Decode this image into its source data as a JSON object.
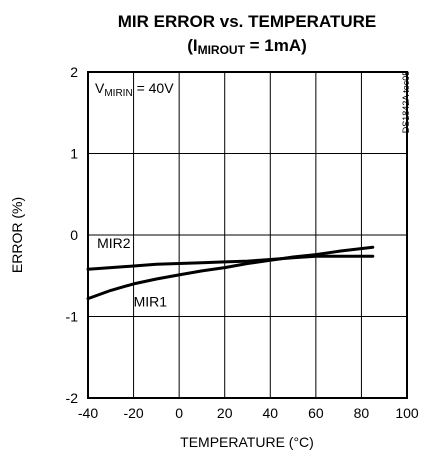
{
  "chart_data": {
    "type": "line",
    "title": "MIR ERROR vs. TEMPERATURE",
    "subtitle": {
      "open": "(I",
      "sub": "MIROUT",
      "rest": " = 1mA)"
    },
    "xlabel": "TEMPERATURE (°C)",
    "ylabel": "ERROR (%)",
    "xlim": [
      -40,
      100
    ],
    "ylim": [
      -2,
      2
    ],
    "xticks": [
      -40,
      -20,
      0,
      20,
      40,
      60,
      80,
      100
    ],
    "yticks": [
      -2,
      -1,
      0,
      1,
      2
    ],
    "grid": true,
    "annotation": {
      "main": "V",
      "sub": "MIRIN",
      "rest": " = 40V"
    },
    "figure_code": "DS1842A toc05",
    "series": [
      {
        "name": "MIR1",
        "x": [
          -40,
          -30,
          -20,
          -10,
          0,
          10,
          20,
          30,
          40,
          50,
          60,
          70,
          85
        ],
        "y": [
          -0.78,
          -0.68,
          -0.6,
          -0.54,
          -0.49,
          -0.44,
          -0.4,
          -0.35,
          -0.31,
          -0.27,
          -0.24,
          -0.2,
          -0.15
        ]
      },
      {
        "name": "MIR2",
        "x": [
          -40,
          -30,
          -20,
          -10,
          0,
          10,
          20,
          30,
          40,
          50,
          60,
          70,
          85
        ],
        "y": [
          -0.42,
          -0.4,
          -0.38,
          -0.36,
          -0.35,
          -0.34,
          -0.33,
          -0.32,
          -0.3,
          -0.28,
          -0.26,
          -0.26,
          -0.26
        ]
      }
    ],
    "series_labels": [
      {
        "name": "MIR2",
        "x": -36,
        "y": -0.16
      },
      {
        "name": "MIR1",
        "x": -20,
        "y": -0.88
      }
    ]
  }
}
